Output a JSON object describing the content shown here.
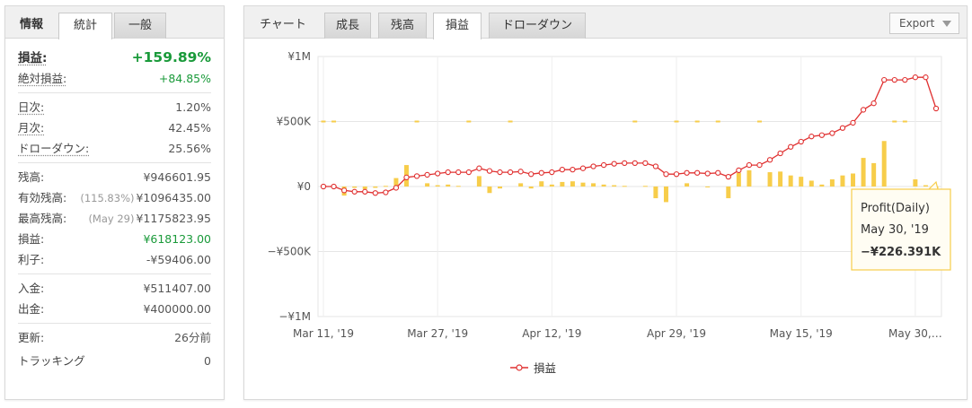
{
  "left": {
    "tabs": [
      {
        "label": "情報"
      },
      {
        "label": "統計"
      },
      {
        "label": "一般"
      }
    ],
    "stats": {
      "profit_label": "損益:",
      "profit_value": "+159.89%",
      "abs_label": "絶対損益:",
      "abs_value": "+84.85%",
      "daily_label": "日次:",
      "daily_value": "1.20%",
      "monthly_label": "月次:",
      "monthly_value": "42.45%",
      "dd_label": "ドローダウン:",
      "dd_value": "25.56%",
      "balance_label": "残高:",
      "balance_value": "¥946601.95",
      "equity_label": "有効残高:",
      "equity_sub": "(115.83%)",
      "equity_value": "¥1096435.00",
      "high_label": "最高残高:",
      "high_sub": "(May 29)",
      "high_value": "¥1175823.95",
      "pl_label": "損益:",
      "pl_value": "¥618123.00",
      "interest_label": "利子:",
      "interest_value": "-¥59406.00",
      "deposit_label": "入金:",
      "deposit_value": "¥511407.00",
      "withdraw_label": "出金:",
      "withdraw_value": "¥400000.00",
      "updated_label": "更新:",
      "updated_value": "26分前",
      "tracking_label": "トラッキング",
      "tracking_value": "0"
    }
  },
  "right": {
    "tabs": [
      {
        "label": "チャート"
      },
      {
        "label": "成長"
      },
      {
        "label": "残高"
      },
      {
        "label": "損益"
      },
      {
        "label": "ドローダウン"
      }
    ],
    "export_label": "Export",
    "tooltip": {
      "title": "Profit(Daily)",
      "date": "May 30, '19",
      "value": "−¥226.391K"
    }
  },
  "chart_data": {
    "type": "bar+line",
    "y_ticks": [
      "¥1M",
      "¥500K",
      "¥0",
      "−¥500K",
      "−¥1M"
    ],
    "y_tick_values": [
      1000000,
      500000,
      0,
      -500000,
      -1000000
    ],
    "ylim": [
      -1000000,
      1000000
    ],
    "x_tick_labels": [
      "Mar 11, '19",
      "Mar 27, '19",
      "Apr 12, '19",
      "Apr 29, '19",
      "May 15, '19",
      "May 30,…"
    ],
    "legend": "損益",
    "colors": {
      "bar": "#f7cd4a",
      "line": "#e03030",
      "tooltip_border": "#f7cd4a"
    },
    "series": [
      {
        "name": "損益",
        "kind": "line",
        "values": [
          0,
          0,
          -30000,
          -40000,
          -40000,
          -50000,
          -45000,
          -10000,
          70000,
          80000,
          90000,
          100000,
          110000,
          110000,
          110000,
          140000,
          120000,
          110000,
          110000,
          115000,
          95000,
          105000,
          110000,
          130000,
          130000,
          140000,
          155000,
          165000,
          175000,
          180000,
          180000,
          180000,
          155000,
          95000,
          95000,
          105000,
          105000,
          100000,
          105000,
          75000,
          125000,
          165000,
          165000,
          205000,
          255000,
          305000,
          345000,
          385000,
          395000,
          410000,
          450000,
          490000,
          590000,
          640000,
          820000,
          820000,
          820000,
          840000,
          840000,
          600000
        ]
      },
      {
        "name": "Profit(Daily)",
        "kind": "bar",
        "values": [
          0,
          0,
          -70000,
          -10000,
          -20000,
          -10000,
          5000,
          65000,
          165000,
          0,
          25000,
          10000,
          15000,
          5000,
          0,
          80000,
          -50000,
          -15000,
          0,
          25000,
          -15000,
          40000,
          15000,
          35000,
          40000,
          30000,
          25000,
          15000,
          10000,
          5000,
          0,
          5000,
          -90000,
          -120000,
          0,
          25000,
          0,
          -5000,
          0,
          -90000,
          105000,
          125000,
          0,
          110000,
          115000,
          85000,
          75000,
          45000,
          15000,
          55000,
          85000,
          100000,
          220000,
          180000,
          350000,
          0,
          0,
          55000,
          10000,
          -226391
        ]
      }
    ]
  }
}
